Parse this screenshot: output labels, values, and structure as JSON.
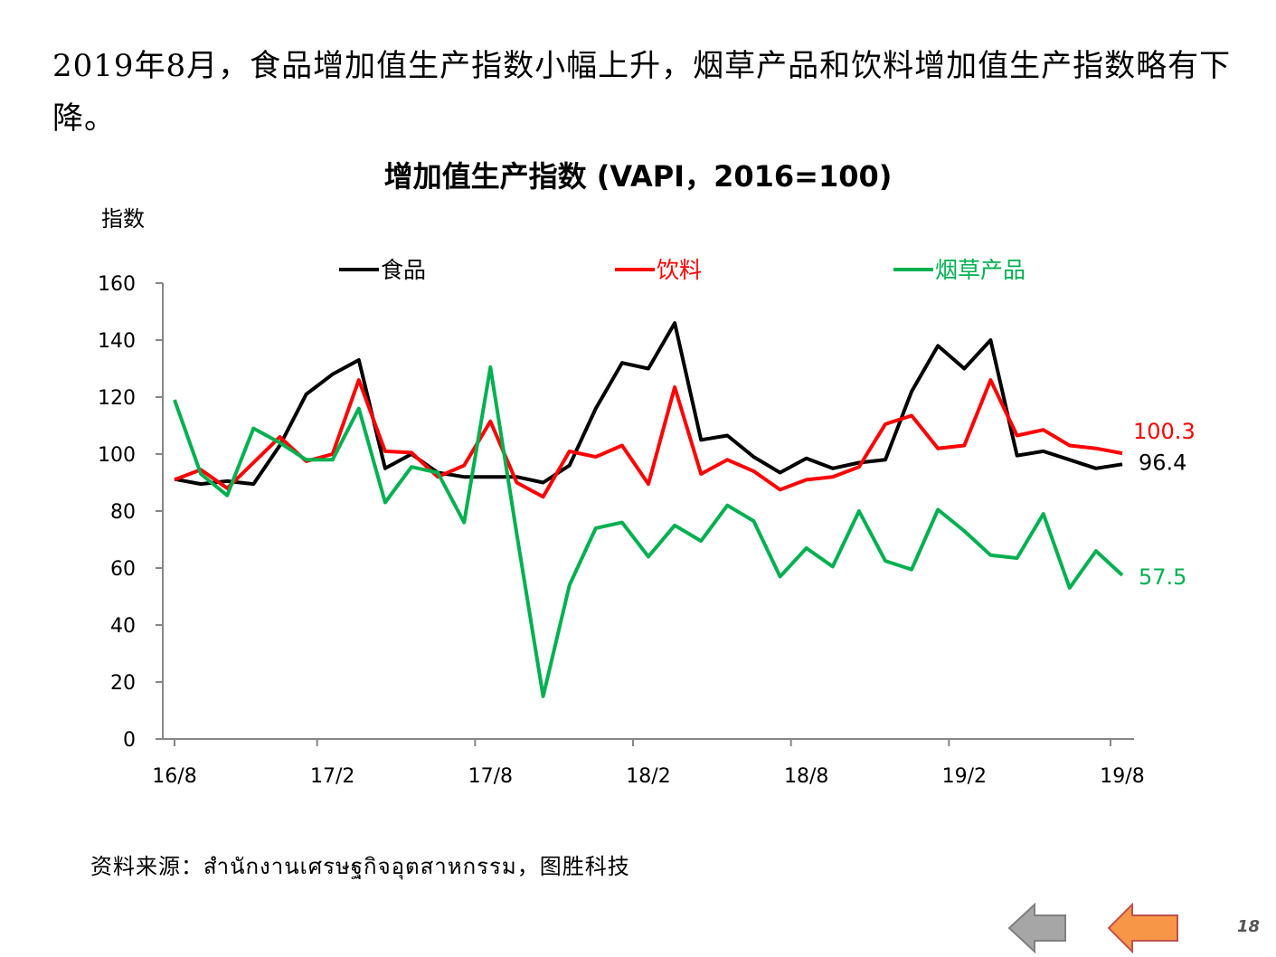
{
  "headline": "2019年8月，食品增加值生产指数小幅上升，烟草产品和饮料增加值生产指数略有下降。",
  "source": "资料来源：สำนักงานเศรษฐกิจอุตสาหกรรม，图胜科技",
  "page_number": "18",
  "nav": {
    "prev_icon": "arrow-left-gray-icon",
    "next_icon": "arrow-left-orange-icon"
  },
  "chart_data": {
    "type": "line",
    "title": "增加值生产指数 (VAPI，2016=100)",
    "ylabel": "指数",
    "ylim": [
      0,
      160
    ],
    "yticks": [
      "0",
      "20",
      "40",
      "60",
      "80",
      "100",
      "120",
      "140",
      "160"
    ],
    "x": [
      "16/8",
      "16/9",
      "16/10",
      "16/11",
      "16/12",
      "17/1",
      "17/2",
      "17/3",
      "17/4",
      "17/5",
      "17/6",
      "17/7",
      "17/8",
      "17/9",
      "17/10",
      "17/11",
      "17/12",
      "18/1",
      "18/2",
      "18/3",
      "18/4",
      "18/5",
      "18/6",
      "18/7",
      "18/8",
      "18/9",
      "18/10",
      "18/11",
      "18/12",
      "19/1",
      "19/2",
      "19/3",
      "19/4",
      "19/5",
      "19/6",
      "19/7",
      "19/8"
    ],
    "xtick_labels": [
      "16/8",
      "17/2",
      "17/8",
      "18/2",
      "18/8",
      "19/2",
      "19/8"
    ],
    "legend_position": "top",
    "series": [
      {
        "name": "食品",
        "color": "#000000",
        "end_label": "96.4",
        "values": [
          91.2,
          89.5,
          90.5,
          89.5,
          103,
          121,
          128,
          133,
          95,
          100,
          93.5,
          92,
          92,
          92,
          90,
          96,
          116,
          132,
          130,
          146,
          105,
          106.5,
          99,
          93.5,
          98.5,
          95,
          97,
          98,
          122,
          138,
          130,
          140,
          99.5,
          101,
          98,
          95,
          96.4
        ]
      },
      {
        "name": "饮料",
        "color": "#FF0000",
        "end_label": "100.3",
        "values": [
          91,
          94.5,
          88,
          97,
          106,
          97.5,
          100,
          126,
          101,
          100.5,
          92,
          96,
          111.5,
          90,
          85,
          101,
          99,
          103,
          89.5,
          123.5,
          93,
          98,
          94,
          87.5,
          91,
          92,
          95.5,
          110.5,
          113.5,
          102,
          103,
          126,
          106.5,
          108.5,
          103,
          102,
          100.3
        ]
      },
      {
        "name": "烟草产品",
        "color": "#00B050",
        "end_label": "57.5",
        "values": [
          119,
          93,
          85.5,
          109,
          104,
          98,
          98,
          116,
          83,
          95.5,
          93.5,
          76,
          130.5,
          72,
          15,
          54,
          74,
          76,
          64,
          75,
          69.5,
          82,
          76.5,
          57,
          67,
          60.5,
          80,
          62.5,
          59.5,
          80.5,
          73,
          64.5,
          63.5,
          79,
          53,
          66,
          57.5
        ]
      }
    ]
  }
}
